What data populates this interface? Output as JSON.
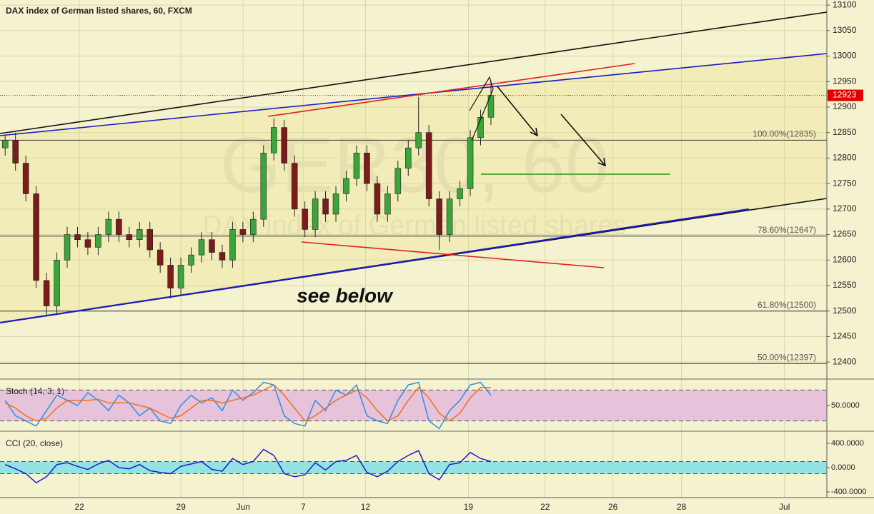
{
  "chart_data": [
    {
      "type": "candlestick",
      "title": "DAX index of German listed shares, 60, FXCM",
      "watermark": "GER30, 60",
      "watermark_sub": "DAX index of German listed shares",
      "annotation": "see below",
      "xlim": [
        0,
        40
      ],
      "xticks": [
        {
          "value": 3.84,
          "label": "22"
        },
        {
          "value": 8.75,
          "label": "29"
        },
        {
          "value": 11.76,
          "label": "Jun"
        },
        {
          "value": 14.67,
          "label": "7"
        },
        {
          "value": 17.68,
          "label": "12"
        },
        {
          "value": 22.66,
          "label": "19"
        },
        {
          "value": 26.37,
          "label": "22"
        },
        {
          "value": 29.65,
          "label": "26"
        },
        {
          "value": 32.97,
          "label": "28"
        },
        {
          "value": 37.95,
          "label": "Jul"
        }
      ],
      "ylim": [
        12368,
        13110
      ],
      "yticks": [
        12400,
        12450,
        12500,
        12550,
        12600,
        12650,
        12700,
        12750,
        12800,
        12850,
        12900,
        12950,
        13000,
        13050,
        13100
      ],
      "grid": true,
      "up_color": "#3aa53a",
      "down_color": "#7b1b1b",
      "x": [
        0.25,
        0.75,
        1.25,
        1.75,
        2.25,
        2.75,
        3.25,
        3.75,
        4.25,
        4.75,
        5.25,
        5.75,
        6.25,
        6.75,
        7.25,
        7.75,
        8.25,
        8.75,
        9.25,
        9.75,
        10.25,
        10.75,
        11.25,
        11.75,
        12.25,
        12.75,
        13.25,
        13.75,
        14.25,
        14.75,
        15.25,
        15.75,
        16.25,
        16.75,
        17.25,
        17.75,
        18.25,
        18.75,
        19.25,
        19.75,
        20.25,
        20.75,
        21.25,
        21.75,
        22.25,
        22.75,
        23.25,
        23.75
      ],
      "open": [
        12820,
        12835,
        12790,
        12730,
        12560,
        12510,
        12600,
        12650,
        12640,
        12625,
        12650,
        12680,
        12650,
        12640,
        12660,
        12620,
        12590,
        12545,
        12590,
        12610,
        12640,
        12615,
        12600,
        12660,
        12650,
        12680,
        12810,
        12860,
        12790,
        12700,
        12660,
        12720,
        12690,
        12730,
        12760,
        12810,
        12750,
        12690,
        12730,
        12780,
        12820,
        12850,
        12720,
        12650,
        12720,
        12740,
        12840,
        12880
      ],
      "high": [
        12845,
        12850,
        12805,
        12745,
        12575,
        12615,
        12665,
        12665,
        12655,
        12665,
        12695,
        12695,
        12665,
        12675,
        12675,
        12635,
        12605,
        12605,
        12625,
        12655,
        12655,
        12630,
        12675,
        12675,
        12695,
        12825,
        12878,
        12875,
        12805,
        12715,
        12735,
        12735,
        12745,
        12775,
        12825,
        12825,
        12765,
        12745,
        12795,
        12835,
        12920,
        12865,
        12735,
        12735,
        12755,
        12855,
        12895,
        12950
      ],
      "low": [
        12805,
        12775,
        12715,
        12545,
        12490,
        12495,
        12585,
        12625,
        12610,
        12610,
        12635,
        12635,
        12625,
        12625,
        12605,
        12575,
        12525,
        12530,
        12575,
        12595,
        12600,
        12585,
        12585,
        12635,
        12635,
        12665,
        12795,
        12775,
        12685,
        12645,
        12645,
        12675,
        12675,
        12715,
        12745,
        12735,
        12675,
        12675,
        12715,
        12765,
        12805,
        12705,
        12620,
        12635,
        12705,
        12725,
        12825,
        12865
      ],
      "close": [
        12835,
        12790,
        12730,
        12560,
        12510,
        12600,
        12650,
        12640,
        12625,
        12650,
        12680,
        12650,
        12640,
        12660,
        12620,
        12590,
        12545,
        12590,
        12610,
        12640,
        12615,
        12600,
        12660,
        12650,
        12680,
        12810,
        12860,
        12790,
        12700,
        12660,
        12720,
        12690,
        12730,
        12760,
        12810,
        12750,
        12690,
        12730,
        12780,
        12820,
        12850,
        12720,
        12650,
        12720,
        12740,
        12840,
        12880,
        12923
      ],
      "last_price": 12923,
      "last_color": "#e00000",
      "levels": [
        {
          "value": 12835,
          "label": "100.00%(12835)"
        },
        {
          "value": 12647,
          "label": "78.60%(12647)"
        },
        {
          "value": 12500,
          "label": "61.80%(12500)"
        },
        {
          "value": 12397,
          "label": "50.00%(12397)"
        }
      ]
    },
    {
      "type": "line",
      "label": "Stoch (14, 3, 1)",
      "ylim": [
        0,
        100
      ],
      "yticks": [
        {
          "value": 50,
          "label": "50.0000"
        }
      ],
      "bands": [
        20,
        80
      ],
      "band_color": "#e6c3da",
      "series": [
        {
          "color": "#2f8fe0",
          "values": [
            60,
            30,
            20,
            10,
            40,
            70,
            60,
            50,
            75,
            60,
            40,
            70,
            55,
            30,
            45,
            20,
            15,
            50,
            70,
            55,
            65,
            40,
            80,
            60,
            75,
            95,
            90,
            30,
            15,
            10,
            60,
            40,
            80,
            70,
            90,
            30,
            20,
            15,
            60,
            90,
            95,
            20,
            5,
            40,
            60,
            90,
            95,
            70
          ]
        },
        {
          "color": "#f07020",
          "values": [
            55,
            45,
            30,
            20,
            25,
            45,
            60,
            60,
            60,
            62,
            55,
            55,
            55,
            50,
            45,
            35,
            25,
            30,
            45,
            60,
            60,
            55,
            60,
            65,
            70,
            80,
            90,
            70,
            45,
            20,
            30,
            45,
            60,
            70,
            80,
            65,
            40,
            20,
            30,
            60,
            85,
            65,
            35,
            20,
            35,
            65,
            85,
            85
          ]
        }
      ]
    },
    {
      "type": "line",
      "label": "CCI (20, close)",
      "ylim": [
        -494,
        588
      ],
      "yticks": [
        {
          "value": 400,
          "label": "400.0000"
        },
        {
          "value": 0,
          "label": "0.0000"
        },
        {
          "value": -400,
          "label": "-400.0000"
        }
      ],
      "bands": [
        -100,
        100
      ],
      "band_color": "#93e3e3",
      "series": [
        {
          "color": "#1c1cc8",
          "values": [
            50,
            -20,
            -100,
            -250,
            -150,
            50,
            80,
            20,
            -30,
            60,
            120,
            0,
            -20,
            50,
            -50,
            -80,
            -100,
            20,
            60,
            100,
            -30,
            -60,
            150,
            50,
            100,
            300,
            200,
            -100,
            -150,
            -120,
            80,
            -40,
            100,
            120,
            200,
            -80,
            -150,
            -60,
            100,
            200,
            280,
            -100,
            -200,
            50,
            80,
            250,
            150,
            100
          ]
        }
      ]
    }
  ]
}
